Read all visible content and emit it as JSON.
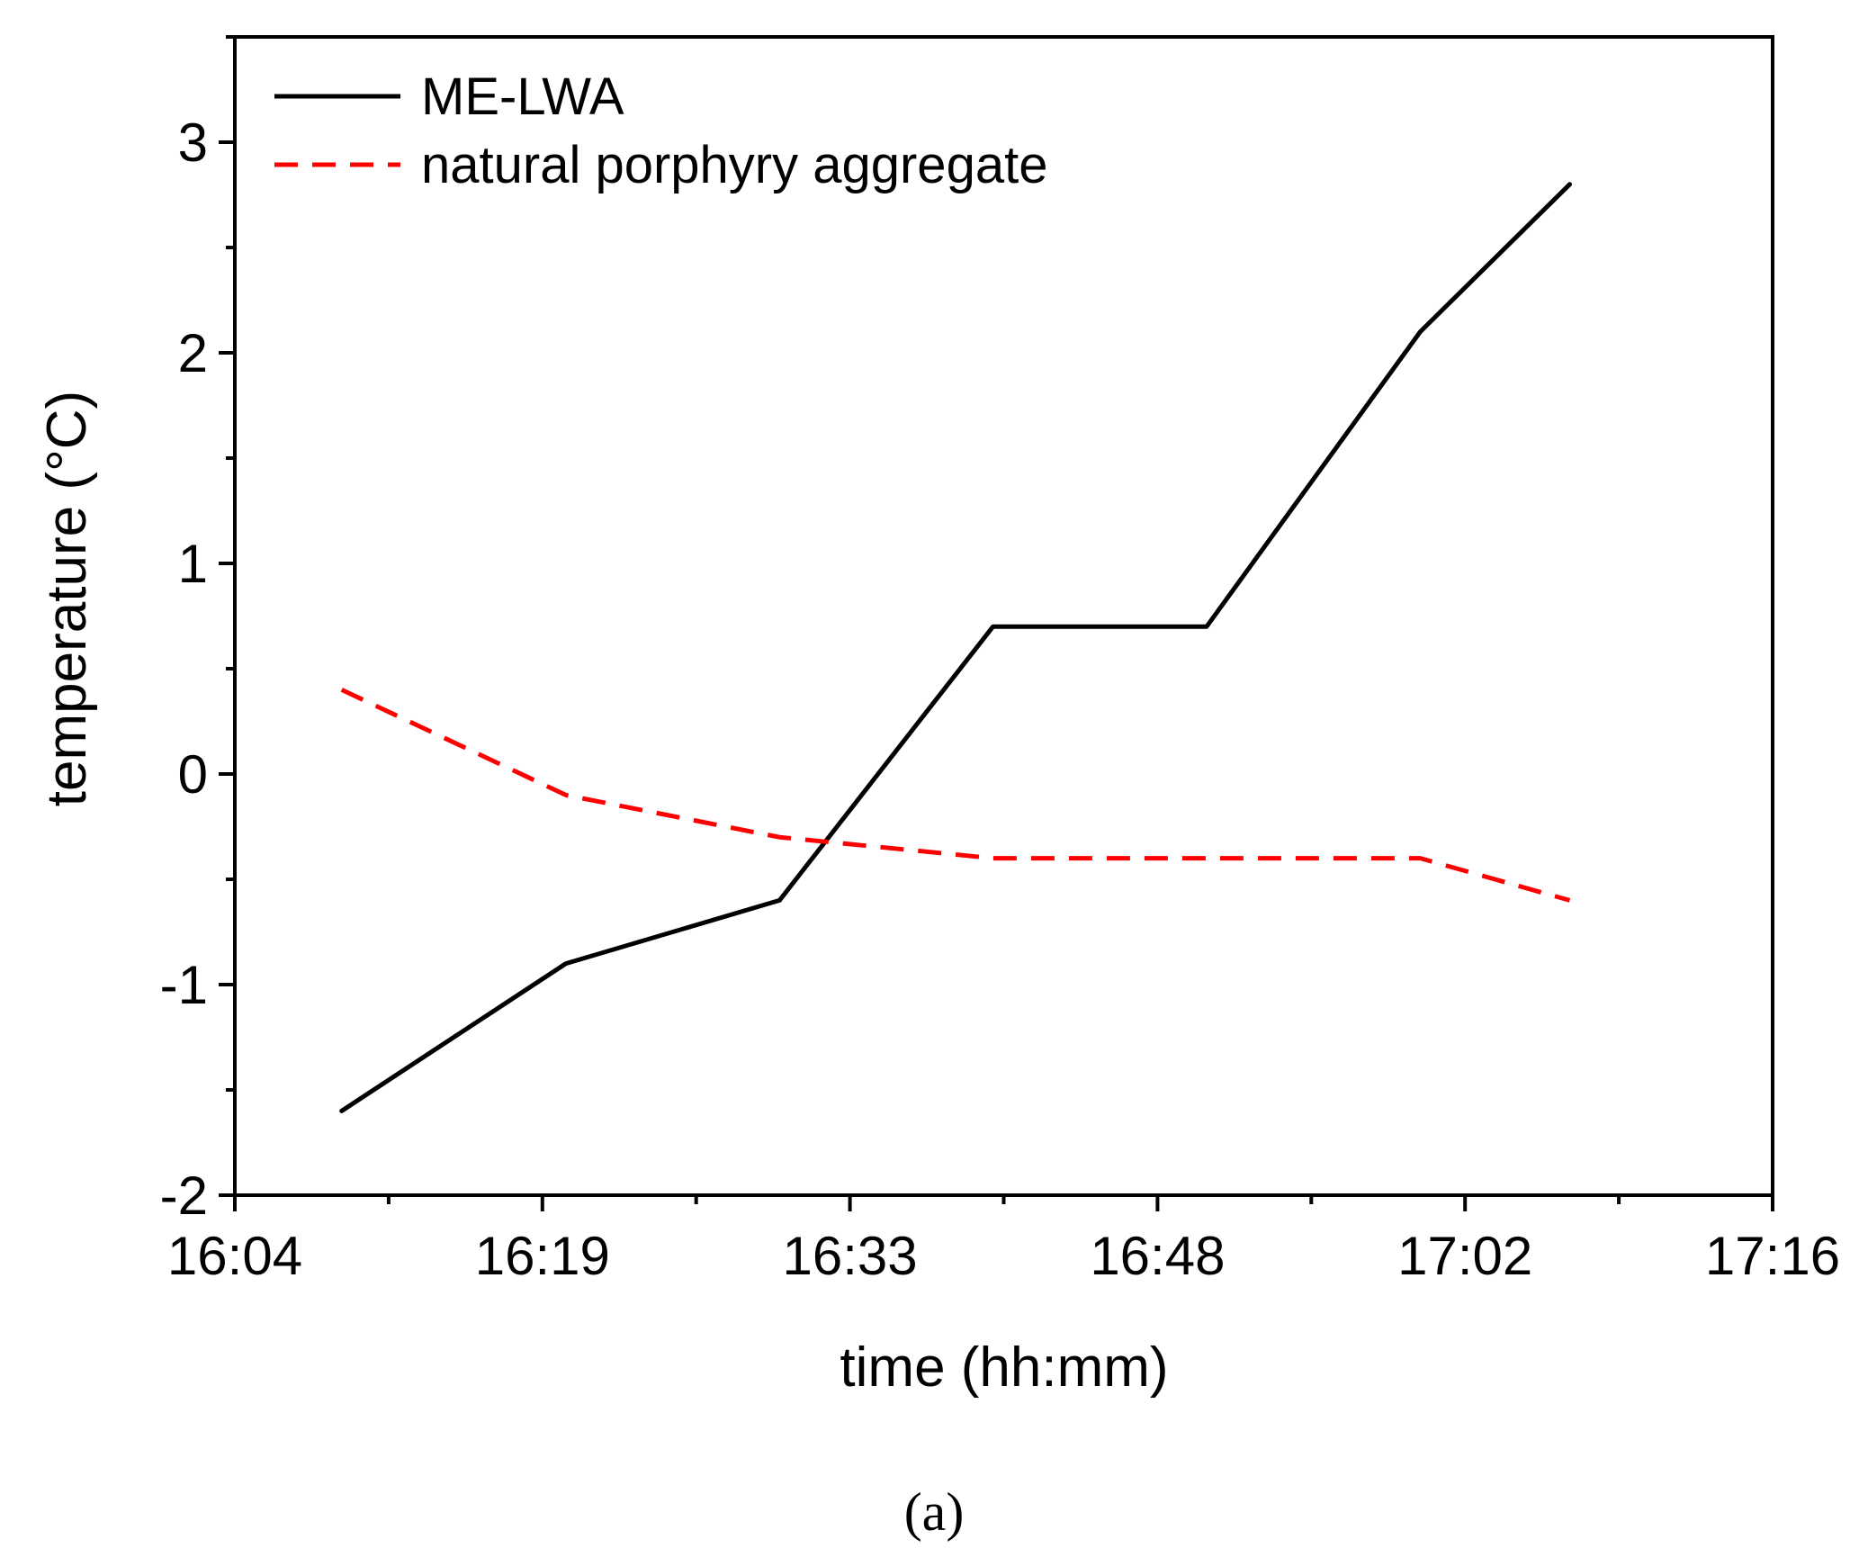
{
  "chart_data": {
    "type": "line",
    "title": "",
    "xlabel": "time (hh:mm)",
    "ylabel": "temperature (°C)",
    "caption": "(a)",
    "x_ticks": [
      "16:04",
      "16:19",
      "16:33",
      "16:48",
      "17:02",
      "17:16"
    ],
    "xlim_minutes": [
      0,
      72
    ],
    "ylim": [
      -2,
      3.5
    ],
    "y_ticks": [
      -2,
      -1,
      0,
      1,
      2,
      3
    ],
    "y_tick_labels": [
      "-2",
      "-1",
      "0",
      "1",
      "2",
      "3"
    ],
    "grid": false,
    "legend_position": "top-left",
    "series": [
      {
        "name": "ME-LWA",
        "color": "#000000",
        "style": "solid",
        "x_minutes": [
          5,
          15.5,
          25.5,
          35.5,
          45.5,
          55.5,
          62.5
        ],
        "values": [
          -1.6,
          -0.9,
          -0.6,
          0.7,
          0.7,
          2.1,
          2.8
        ]
      },
      {
        "name": "natural porphyry aggregate",
        "color": "#ff0000",
        "style": "dashed",
        "x_minutes": [
          5,
          15.5,
          25.5,
          35.5,
          45.5,
          55.5,
          62.5
        ],
        "values": [
          0.4,
          -0.1,
          -0.3,
          -0.4,
          -0.4,
          -0.4,
          -0.6
        ]
      }
    ]
  }
}
